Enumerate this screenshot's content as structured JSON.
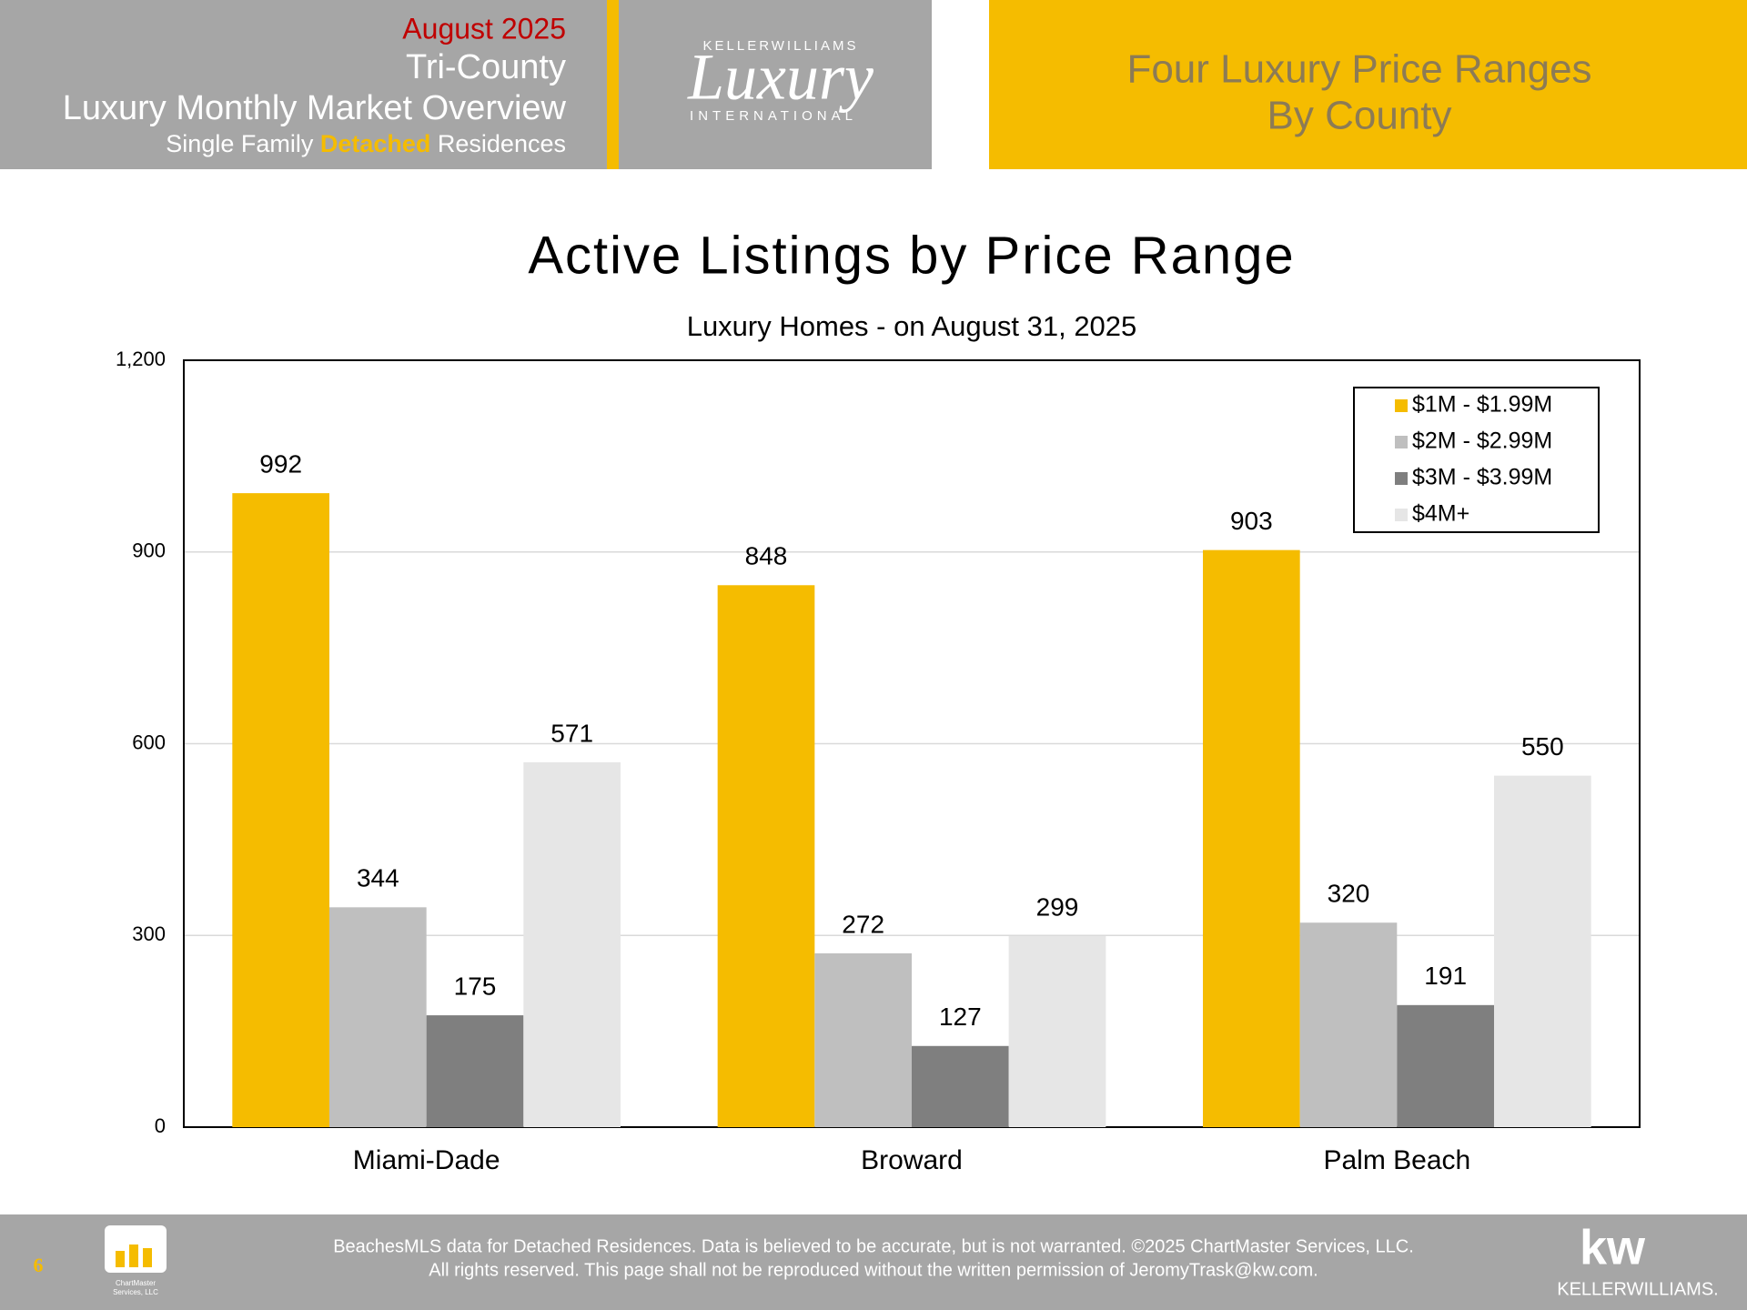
{
  "header": {
    "month": "August 2025",
    "region": "Tri-County",
    "report": "Luxury Monthly Market Overview",
    "subtitle_parts": [
      "Single Family ",
      "Detached",
      " Residences"
    ],
    "logo": {
      "brand": "KELLERWILLIAMS",
      "script": "Luxury",
      "tagline": "INTERNATIONAL"
    },
    "section": [
      "Four Luxury Price Ranges",
      "By County"
    ]
  },
  "chart_data": {
    "type": "bar",
    "title": "Active Listings by Price Range",
    "subtitle": "Luxury Homes - on August 31, 2025",
    "categories": [
      "Miami-Dade",
      "Broward",
      "Palm Beach"
    ],
    "series": [
      {
        "name": "$1M - $1.99M",
        "color": "#F5BC00",
        "values": [
          992,
          848,
          903
        ]
      },
      {
        "name": "$2M - $2.99M",
        "color": "#BFBFBF",
        "values": [
          344,
          272,
          320
        ]
      },
      {
        "name": "$3M - $3.99M",
        "color": "#7F7F7F",
        "values": [
          175,
          127,
          191
        ]
      },
      {
        "name": "$4M+",
        "color": "#E6E6E6",
        "values": [
          571,
          299,
          550
        ]
      }
    ],
    "ylim": [
      0,
      1200
    ],
    "yticks": [
      0,
      300,
      600,
      900,
      {
        "value": 1200,
        "label": "1,200"
      }
    ],
    "grid": true,
    "legend": "top-right"
  },
  "footer": {
    "page": "6",
    "icon_text": [
      "ChartMaster",
      "Services, LLC"
    ],
    "lines": [
      "BeachesMLS data for Detached Residences.  Data is believed to be accurate, but is not warranted.   ©2025  ChartMaster Services, LLC.",
      "All rights reserved. This page shall not be reproduced without the written permission of JeromyTrask@kw.com."
    ],
    "kw": "kw",
    "kw_name": "KELLERWILLIAMS."
  }
}
